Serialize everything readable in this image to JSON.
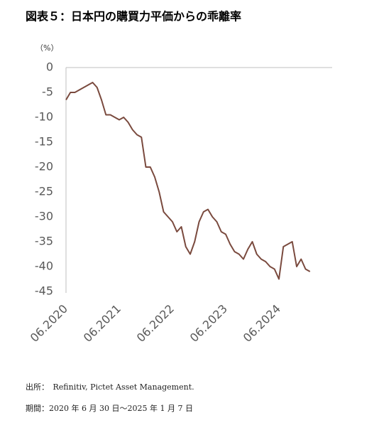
{
  "chart_data": {
    "type": "line",
    "title": "図表５：日本円の購買力平価からの乖離率",
    "y_label": "（%）",
    "x": [
      "2020-06",
      "2020-07",
      "2020-08",
      "2020-09",
      "2020-10",
      "2020-11",
      "2020-12",
      "2021-01",
      "2021-02",
      "2021-03",
      "2021-04",
      "2021-05",
      "2021-06",
      "2021-07",
      "2021-08",
      "2021-09",
      "2021-10",
      "2021-11",
      "2021-12",
      "2022-01",
      "2022-02",
      "2022-03",
      "2022-04",
      "2022-05",
      "2022-06",
      "2022-07",
      "2022-08",
      "2022-09",
      "2022-10",
      "2022-11",
      "2022-12",
      "2023-01",
      "2023-02",
      "2023-03",
      "2023-04",
      "2023-05",
      "2023-06",
      "2023-07",
      "2023-08",
      "2023-09",
      "2023-10",
      "2023-11",
      "2023-12",
      "2024-01",
      "2024-02",
      "2024-03",
      "2024-04",
      "2024-05",
      "2024-06",
      "2024-07",
      "2024-08",
      "2024-09",
      "2024-10",
      "2024-11",
      "2024-12",
      "2025-01"
    ],
    "series": [
      {
        "color": "#7a4a3e",
        "values": [
          -6.5,
          -5,
          -5,
          -4.5,
          -4,
          -3.5,
          -3,
          -4,
          -6.5,
          -9.5,
          -9.5,
          -10,
          -10.5,
          -10,
          -11,
          -12.5,
          -13.5,
          -14,
          -20,
          -20,
          -22,
          -25,
          -29,
          -30,
          -31,
          -33,
          -32,
          -36,
          -37.5,
          -35,
          -31,
          -29,
          -28.5,
          -30,
          -31,
          -33,
          -33.5,
          -35.5,
          -37,
          -37.5,
          -38.5,
          -36.5,
          -35,
          -37.5,
          -38.5,
          -39,
          -40,
          -40.5,
          -42.5,
          -36,
          -35.5,
          -35,
          -40,
          -38.5,
          -40.5,
          -41
        ]
      }
    ],
    "xlim": [
      "2020-06",
      "2025-06"
    ],
    "xticks": [
      {
        "value": "2020-06",
        "label": "06.2020"
      },
      {
        "value": "2021-06",
        "label": "06.2021"
      },
      {
        "value": "2022-06",
        "label": "06.2022"
      },
      {
        "value": "2023-06",
        "label": "06.2023"
      },
      {
        "value": "2024-06",
        "label": "06.2024"
      }
    ],
    "ylim": [
      -45,
      0
    ],
    "yticks": [
      0,
      -5,
      -10,
      -15,
      -20,
      -25,
      -30,
      -35,
      -40,
      -45
    ],
    "grid": false,
    "source": "出所：　Refinitiv, Pictet Asset Management.",
    "period": "期間：2020 年 6 月 30 日～2025 年 1 月 7 日"
  }
}
